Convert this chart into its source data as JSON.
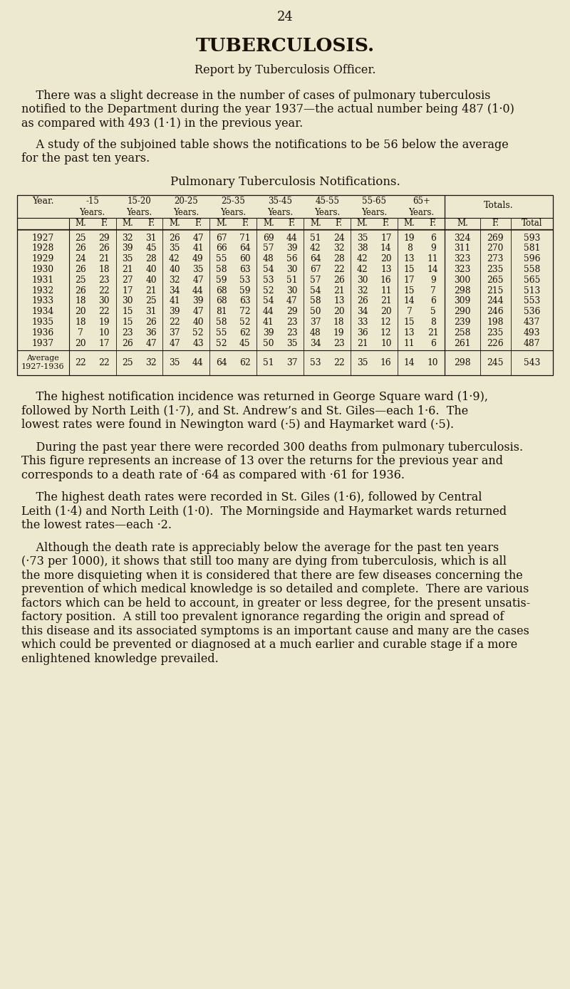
{
  "bg_color": "#ede8d0",
  "text_color": "#1a1005",
  "page_number": "24",
  "title": "TUBERCULOSIS.",
  "subtitle": "Report by Tuberculosis Officer.",
  "para1_lines": [
    "    There was a slight decrease in the number of cases of pulmonary tuberculosis",
    "notified to the Department during the year 1937—the actual number being 487 (1·0)",
    "as compared with 493 (1·1) in the previous year."
  ],
  "para2_lines": [
    "    A study of the subjoined table shows the notifications to be 56 below the average",
    "for the past ten years."
  ],
  "table_title": "Pulmonary Tuberculosis Notifications.",
  "age_groups": [
    "-15\nYears.",
    "15-20\nYears.",
    "20-25\nYears.",
    "25-35\nYears.",
    "35-45\nYears.",
    "45-55\nYears.",
    "55-65\nYears.",
    "65+\nYears."
  ],
  "data_rows": [
    [
      "1927",
      25,
      29,
      32,
      31,
      26,
      47,
      67,
      71,
      69,
      44,
      51,
      24,
      35,
      17,
      19,
      6,
      324,
      269,
      593
    ],
    [
      "1928",
      26,
      26,
      39,
      45,
      35,
      41,
      66,
      64,
      57,
      39,
      42,
      32,
      38,
      14,
      8,
      9,
      311,
      270,
      581
    ],
    [
      "1929",
      24,
      21,
      35,
      28,
      42,
      49,
      55,
      60,
      48,
      56,
      64,
      28,
      42,
      20,
      13,
      11,
      323,
      273,
      596
    ],
    [
      "1930",
      26,
      18,
      21,
      40,
      40,
      35,
      58,
      63,
      54,
      30,
      67,
      22,
      42,
      13,
      15,
      14,
      323,
      235,
      558
    ],
    [
      "1931",
      25,
      23,
      27,
      40,
      32,
      47,
      59,
      53,
      53,
      51,
      57,
      26,
      30,
      16,
      17,
      9,
      300,
      265,
      565
    ],
    [
      "1932",
      26,
      22,
      17,
      21,
      34,
      44,
      68,
      59,
      52,
      30,
      54,
      21,
      32,
      11,
      15,
      7,
      298,
      215,
      513
    ],
    [
      "1933",
      18,
      30,
      30,
      25,
      41,
      39,
      68,
      63,
      54,
      47,
      58,
      13,
      26,
      21,
      14,
      6,
      309,
      244,
      553
    ],
    [
      "1934",
      20,
      22,
      15,
      31,
      39,
      47,
      81,
      72,
      44,
      29,
      50,
      20,
      34,
      20,
      7,
      5,
      290,
      246,
      536
    ],
    [
      "1935",
      18,
      19,
      15,
      26,
      22,
      40,
      58,
      52,
      41,
      23,
      37,
      18,
      33,
      12,
      15,
      8,
      239,
      198,
      437
    ],
    [
      "1936",
      7,
      10,
      23,
      36,
      37,
      52,
      55,
      62,
      39,
      23,
      48,
      19,
      36,
      12,
      13,
      21,
      258,
      235,
      493
    ],
    [
      "1937",
      20,
      17,
      26,
      47,
      47,
      43,
      52,
      45,
      50,
      35,
      34,
      23,
      21,
      10,
      11,
      6,
      261,
      226,
      487
    ]
  ],
  "avg_label": "Average\n1927-1936",
  "avg_row": [
    22,
    22,
    25,
    32,
    35,
    44,
    64,
    62,
    51,
    37,
    53,
    22,
    35,
    16,
    14,
    10,
    298,
    245,
    543
  ],
  "para3_lines": [
    "    The highest notification incidence was returned in George Square ward (1·9),",
    "followed by North Leith (1·7), and St. Andrew’s and St. Giles—each 1·6.  The",
    "lowest rates were found in Newington ward (·5) and Haymarket ward (·5)."
  ],
  "para4_lines": [
    "    During the past year there were recorded 300 deaths from pulmonary tuberculosis.",
    "This figure represents an increase of 13 over the returns for the previous year and",
    "corresponds to a death rate of ·64 as compared with ·61 for 1936."
  ],
  "para5_lines": [
    "    The highest death rates were recorded in St. Giles (1·6), followed by Central",
    "Leith (1·4) and North Leith (1·0).  The Morningside and Haymarket wards returned",
    "the lowest rates—each ·2."
  ],
  "para6_lines": [
    "    Although the death rate is appreciably below the average for the past ten years",
    "(·73 per 1000), it shows that still too many are dying from tuberculosis, which is all",
    "the more disquieting when it is considered that there are few diseases concerning the",
    "prevention of which medical knowledge is so detailed and complete.  There are various",
    "factors which can be held to account, in greater or less degree, for the present unsatis-",
    "factory position.  A still too prevalent ignorance regarding the origin and spread of",
    "this disease and its associated symptoms is an important cause and many are the cases",
    "which could be prevented or diagnosed at a much earlier and curable stage if a more",
    "enlightened knowledge prevailed."
  ]
}
